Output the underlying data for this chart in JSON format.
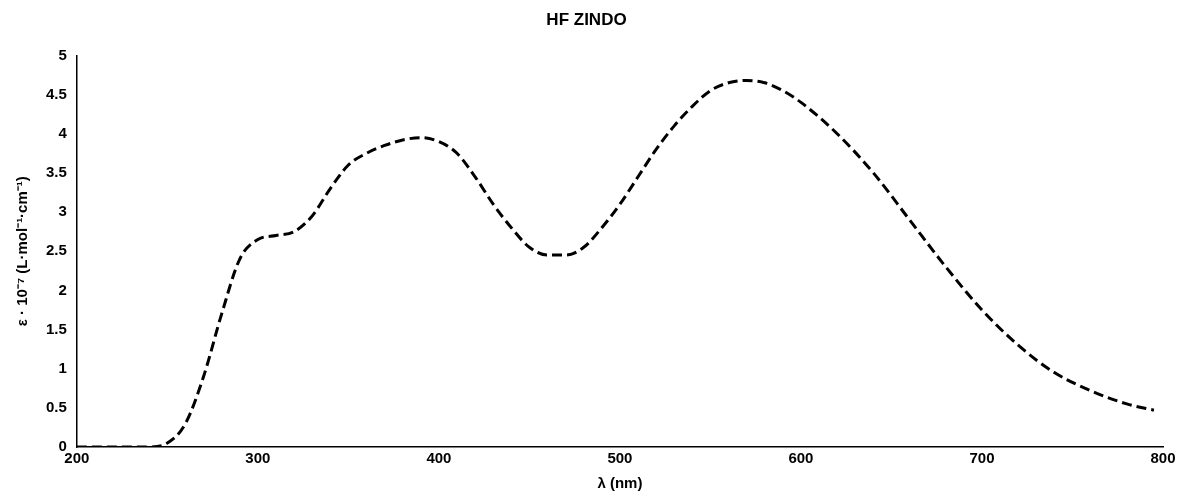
{
  "chart_data": {
    "type": "line",
    "title": "HF ZINDO",
    "xlabel": "λ (nm)",
    "ylabel": "ε · 10⁻⁷ (L·mol⁻¹·cm⁻¹)",
    "x": [
      200,
      240,
      250,
      260,
      270,
      280,
      290,
      300,
      310,
      320,
      330,
      340,
      350,
      360,
      370,
      380,
      390,
      400,
      410,
      420,
      430,
      440,
      450,
      460,
      470,
      480,
      490,
      500,
      510,
      520,
      530,
      540,
      550,
      560,
      570,
      580,
      590,
      600,
      620,
      640,
      660,
      680,
      700,
      720,
      740,
      760,
      780,
      795
    ],
    "series": [
      {
        "color": "#000000",
        "values": [
          0,
          0,
          0.05,
          0.3,
          0.9,
          1.7,
          2.4,
          2.65,
          2.7,
          2.75,
          2.95,
          3.3,
          3.6,
          3.75,
          3.85,
          3.92,
          3.95,
          3.9,
          3.75,
          3.45,
          3.1,
          2.8,
          2.55,
          2.45,
          2.45,
          2.55,
          2.8,
          3.1,
          3.45,
          3.8,
          4.1,
          4.35,
          4.55,
          4.65,
          4.68,
          4.65,
          4.55,
          4.4,
          4.0,
          3.5,
          2.9,
          2.3,
          1.75,
          1.3,
          0.95,
          0.72,
          0.55,
          0.47
        ]
      }
    ],
    "xlim": [
      200,
      800
    ],
    "xticks": [
      200,
      300,
      400,
      500,
      600,
      700,
      800
    ],
    "ylim": [
      0,
      5
    ],
    "yticks": [
      0,
      0.5,
      1,
      1.5,
      2,
      2.5,
      3,
      3.5,
      4,
      4.5,
      5
    ],
    "grid": false,
    "legend": false,
    "marker": "none",
    "line_style": "dashed"
  }
}
